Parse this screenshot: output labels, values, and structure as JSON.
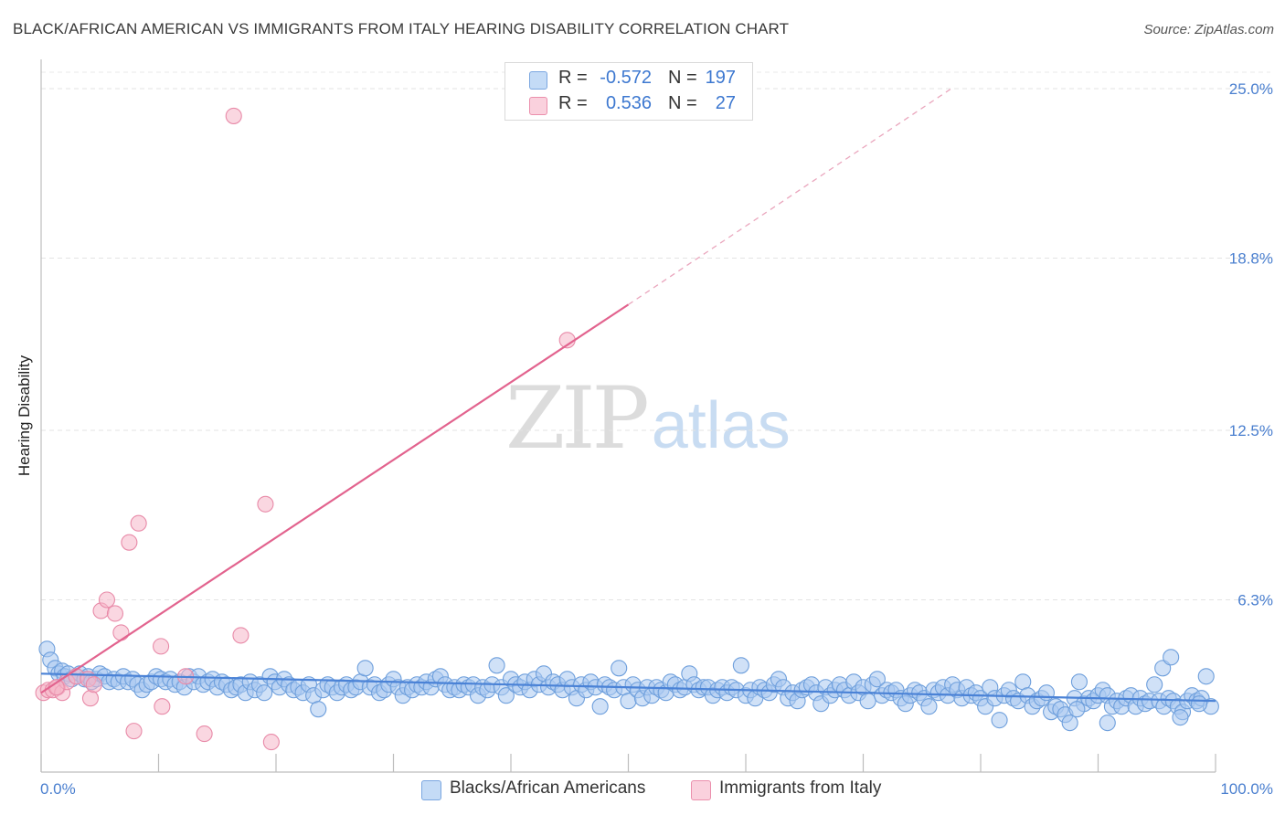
{
  "title": "BLACK/AFRICAN AMERICAN VS IMMIGRANTS FROM ITALY HEARING DISABILITY CORRELATION CHART",
  "source": "Source: ZipAtlas.com",
  "watermark": {
    "zip": "ZIP",
    "atlas": "atlas"
  },
  "legend_box": {
    "rows": [
      {
        "r_label": "R =",
        "r_value": "-0.572",
        "n_label": "N =",
        "n_value": "197",
        "color": "#a9c8f0"
      },
      {
        "r_label": "R =",
        "r_value": "0.536",
        "n_label": "N =",
        "n_value": "27",
        "color": "#f6b6c8"
      }
    ]
  },
  "chart_data": {
    "type": "scatter",
    "title": "BLACK/AFRICAN AMERICAN VS IMMIGRANTS FROM ITALY HEARING DISABILITY CORRELATION CHART",
    "xlabel": "",
    "ylabel": "Hearing Disability",
    "xlim": [
      0,
      100
    ],
    "ylim": [
      0,
      25.8
    ],
    "x_tick_labels": [
      "0.0%",
      "100.0%"
    ],
    "y_ticks": [
      6.3,
      12.5,
      18.8,
      25.0
    ],
    "y_tick_labels": [
      "6.3%",
      "12.5%",
      "18.8%",
      "25.0%"
    ],
    "grid": true,
    "legend_position": "bottom-center",
    "colors": {
      "blue": "#4a82d6",
      "blue_fill": "#a9c8f0",
      "pink": "#e2638e",
      "pink_fill": "#f6b6c8"
    },
    "series": [
      {
        "name": "Blacks/African Americans",
        "color": "#4a82d6",
        "trend": {
          "x": [
            0,
            100
          ],
          "y": [
            3.6,
            2.6
          ]
        },
        "points": [
          [
            0.5,
            4.5
          ],
          [
            0.8,
            4.1
          ],
          [
            1.2,
            3.8
          ],
          [
            1.5,
            3.6
          ],
          [
            1.8,
            3.7
          ],
          [
            2.0,
            3.5
          ],
          [
            2.3,
            3.6
          ],
          [
            2.6,
            3.4
          ],
          [
            3.0,
            3.5
          ],
          [
            3.3,
            3.6
          ],
          [
            3.7,
            3.4
          ],
          [
            4.0,
            3.5
          ],
          [
            4.3,
            3.3
          ],
          [
            4.7,
            3.4
          ],
          [
            5.0,
            3.6
          ],
          [
            5.4,
            3.5
          ],
          [
            5.8,
            3.3
          ],
          [
            6.2,
            3.4
          ],
          [
            6.6,
            3.3
          ],
          [
            7.0,
            3.5
          ],
          [
            7.4,
            3.3
          ],
          [
            7.8,
            3.4
          ],
          [
            8.2,
            3.2
          ],
          [
            8.6,
            3.0
          ],
          [
            9.0,
            3.2
          ],
          [
            9.4,
            3.3
          ],
          [
            9.8,
            3.5
          ],
          [
            10.2,
            3.4
          ],
          [
            10.6,
            3.3
          ],
          [
            11.0,
            3.4
          ],
          [
            11.4,
            3.2
          ],
          [
            11.8,
            3.3
          ],
          [
            12.2,
            3.1
          ],
          [
            12.6,
            3.5
          ],
          [
            13.0,
            3.3
          ],
          [
            13.4,
            3.5
          ],
          [
            13.8,
            3.2
          ],
          [
            14.2,
            3.3
          ],
          [
            14.6,
            3.4
          ],
          [
            15.0,
            3.1
          ],
          [
            15.4,
            3.3
          ],
          [
            15.8,
            3.2
          ],
          [
            16.2,
            3.0
          ],
          [
            16.6,
            3.1
          ],
          [
            17.0,
            3.2
          ],
          [
            17.4,
            2.9
          ],
          [
            17.8,
            3.3
          ],
          [
            18.2,
            3.0
          ],
          [
            18.6,
            3.2
          ],
          [
            19.0,
            2.9
          ],
          [
            19.5,
            3.5
          ],
          [
            19.9,
            3.3
          ],
          [
            20.3,
            3.1
          ],
          [
            20.7,
            3.4
          ],
          [
            21.1,
            3.2
          ],
          [
            21.5,
            3.0
          ],
          [
            21.9,
            3.1
          ],
          [
            22.3,
            2.9
          ],
          [
            22.8,
            3.2
          ],
          [
            23.2,
            2.8
          ],
          [
            23.6,
            2.3
          ],
          [
            24.0,
            3.0
          ],
          [
            24.4,
            3.2
          ],
          [
            24.8,
            3.1
          ],
          [
            25.2,
            2.9
          ],
          [
            25.6,
            3.1
          ],
          [
            26.0,
            3.2
          ],
          [
            26.4,
            3.0
          ],
          [
            26.8,
            3.1
          ],
          [
            27.2,
            3.3
          ],
          [
            27.6,
            3.8
          ],
          [
            28.0,
            3.1
          ],
          [
            28.4,
            3.2
          ],
          [
            28.8,
            2.9
          ],
          [
            29.2,
            3.0
          ],
          [
            29.6,
            3.2
          ],
          [
            30.0,
            3.4
          ],
          [
            30.4,
            3.1
          ],
          [
            30.8,
            2.8
          ],
          [
            31.2,
            3.1
          ],
          [
            31.6,
            3.0
          ],
          [
            32.0,
            3.2
          ],
          [
            32.4,
            3.1
          ],
          [
            32.8,
            3.3
          ],
          [
            33.2,
            3.1
          ],
          [
            33.6,
            3.4
          ],
          [
            34.0,
            3.5
          ],
          [
            34.4,
            3.2
          ],
          [
            34.8,
            3.0
          ],
          [
            35.2,
            3.1
          ],
          [
            35.6,
            3.0
          ],
          [
            36.0,
            3.2
          ],
          [
            36.4,
            3.1
          ],
          [
            36.8,
            3.2
          ],
          [
            37.2,
            2.8
          ],
          [
            37.6,
            3.1
          ],
          [
            38.0,
            3.0
          ],
          [
            38.4,
            3.2
          ],
          [
            38.8,
            3.9
          ],
          [
            39.2,
            3.1
          ],
          [
            39.6,
            2.8
          ],
          [
            40.0,
            3.4
          ],
          [
            40.4,
            3.2
          ],
          [
            40.8,
            3.1
          ],
          [
            41.2,
            3.3
          ],
          [
            41.6,
            3.0
          ],
          [
            42.0,
            3.4
          ],
          [
            42.4,
            3.2
          ],
          [
            42.8,
            3.6
          ],
          [
            43.2,
            3.1
          ],
          [
            43.6,
            3.3
          ],
          [
            44.0,
            3.2
          ],
          [
            44.4,
            3.0
          ],
          [
            44.8,
            3.4
          ],
          [
            45.2,
            3.1
          ],
          [
            45.6,
            2.7
          ],
          [
            46.0,
            3.2
          ],
          [
            46.4,
            3.0
          ],
          [
            46.8,
            3.3
          ],
          [
            47.2,
            3.1
          ],
          [
            47.6,
            2.4
          ],
          [
            48.0,
            3.2
          ],
          [
            48.4,
            3.1
          ],
          [
            48.8,
            3.0
          ],
          [
            49.2,
            3.8
          ],
          [
            49.6,
            3.1
          ],
          [
            50.0,
            2.6
          ],
          [
            50.4,
            3.2
          ],
          [
            50.8,
            3.0
          ],
          [
            51.2,
            2.7
          ],
          [
            51.6,
            3.1
          ],
          [
            52.0,
            2.8
          ],
          [
            52.4,
            3.1
          ],
          [
            52.8,
            3.0
          ],
          [
            53.2,
            2.9
          ],
          [
            53.6,
            3.3
          ],
          [
            54.0,
            3.2
          ],
          [
            54.4,
            3.0
          ],
          [
            54.8,
            3.1
          ],
          [
            55.2,
            3.6
          ],
          [
            55.6,
            3.2
          ],
          [
            56.0,
            3.0
          ],
          [
            56.4,
            3.1
          ],
          [
            56.8,
            3.1
          ],
          [
            57.2,
            2.8
          ],
          [
            57.6,
            3.0
          ],
          [
            58.0,
            3.1
          ],
          [
            58.4,
            2.9
          ],
          [
            58.8,
            3.1
          ],
          [
            59.2,
            3.0
          ],
          [
            59.6,
            3.9
          ],
          [
            60.0,
            2.8
          ],
          [
            60.4,
            3.0
          ],
          [
            60.8,
            2.7
          ],
          [
            61.2,
            3.1
          ],
          [
            61.6,
            3.0
          ],
          [
            62.0,
            2.9
          ],
          [
            62.4,
            3.2
          ],
          [
            62.8,
            3.4
          ],
          [
            63.2,
            3.1
          ],
          [
            63.6,
            2.7
          ],
          [
            64.0,
            2.9
          ],
          [
            64.4,
            2.6
          ],
          [
            64.8,
            3.0
          ],
          [
            65.2,
            3.1
          ],
          [
            65.6,
            3.2
          ],
          [
            66.0,
            2.9
          ],
          [
            66.4,
            2.5
          ],
          [
            66.8,
            3.1
          ],
          [
            67.2,
            2.8
          ],
          [
            67.6,
            3.0
          ],
          [
            68.0,
            3.2
          ],
          [
            68.4,
            3.0
          ],
          [
            68.8,
            2.8
          ],
          [
            69.2,
            3.3
          ],
          [
            69.6,
            2.9
          ],
          [
            70.0,
            3.1
          ],
          [
            70.4,
            2.6
          ],
          [
            70.8,
            3.2
          ],
          [
            71.2,
            3.4
          ],
          [
            71.6,
            2.8
          ],
          [
            72.0,
            3.0
          ],
          [
            72.4,
            2.9
          ],
          [
            72.8,
            3.0
          ],
          [
            73.2,
            2.7
          ],
          [
            73.6,
            2.5
          ],
          [
            74.0,
            2.8
          ],
          [
            74.4,
            3.0
          ],
          [
            74.8,
            2.9
          ],
          [
            75.2,
            2.7
          ],
          [
            75.6,
            2.4
          ],
          [
            76.0,
            3.0
          ],
          [
            76.4,
            2.9
          ],
          [
            76.8,
            3.1
          ],
          [
            77.2,
            2.8
          ],
          [
            77.6,
            3.2
          ],
          [
            78.0,
            3.0
          ],
          [
            78.4,
            2.7
          ],
          [
            78.8,
            3.1
          ],
          [
            79.2,
            2.8
          ],
          [
            79.6,
            2.9
          ],
          [
            80.0,
            2.7
          ],
          [
            80.4,
            2.4
          ],
          [
            80.8,
            3.1
          ],
          [
            81.2,
            2.7
          ],
          [
            81.6,
            1.9
          ],
          [
            82.0,
            2.8
          ],
          [
            82.4,
            3.0
          ],
          [
            82.8,
            2.7
          ],
          [
            83.2,
            2.6
          ],
          [
            83.6,
            3.3
          ],
          [
            84.0,
            2.8
          ],
          [
            84.4,
            2.4
          ],
          [
            84.8,
            2.6
          ],
          [
            85.2,
            2.7
          ],
          [
            85.6,
            2.9
          ],
          [
            86.0,
            2.2
          ],
          [
            86.4,
            2.4
          ],
          [
            86.8,
            2.3
          ],
          [
            87.2,
            2.1
          ],
          [
            87.6,
            1.8
          ],
          [
            88.0,
            2.7
          ],
          [
            88.4,
            3.3
          ],
          [
            88.8,
            2.5
          ],
          [
            89.2,
            2.7
          ],
          [
            89.6,
            2.6
          ],
          [
            90.0,
            2.8
          ],
          [
            90.4,
            3.0
          ],
          [
            90.8,
            2.8
          ],
          [
            91.2,
            2.4
          ],
          [
            91.6,
            2.6
          ],
          [
            92.0,
            2.4
          ],
          [
            92.4,
            2.7
          ],
          [
            92.8,
            2.8
          ],
          [
            93.2,
            2.4
          ],
          [
            93.6,
            2.7
          ],
          [
            94.0,
            2.5
          ],
          [
            94.4,
            2.6
          ],
          [
            94.8,
            3.2
          ],
          [
            95.2,
            2.6
          ],
          [
            95.6,
            2.4
          ],
          [
            96.0,
            2.7
          ],
          [
            96.4,
            2.6
          ],
          [
            96.8,
            2.4
          ],
          [
            97.2,
            2.2
          ],
          [
            97.6,
            2.6
          ],
          [
            98.0,
            2.8
          ],
          [
            98.4,
            2.6
          ],
          [
            98.8,
            2.7
          ],
          [
            99.2,
            3.5
          ],
          [
            99.6,
            2.4
          ],
          [
            95.5,
            3.8
          ],
          [
            96.2,
            4.2
          ],
          [
            97.0,
            2.0
          ],
          [
            98.6,
            2.5
          ],
          [
            88.2,
            2.3
          ],
          [
            90.8,
            1.8
          ]
        ]
      },
      {
        "name": "Immigrants from Italy",
        "color": "#e2638e",
        "trend": {
          "x": [
            0,
            50
          ],
          "y": [
            2.9,
            17.1
          ]
        },
        "trend_dashed": {
          "x": [
            50,
            77.5
          ],
          "y": [
            17.1,
            25.0
          ]
        },
        "points": [
          [
            0.2,
            2.9
          ],
          [
            0.6,
            3.0
          ],
          [
            1.0,
            3.0
          ],
          [
            1.4,
            3.1
          ],
          [
            1.8,
            2.9
          ],
          [
            2.2,
            3.3
          ],
          [
            3.0,
            3.5
          ],
          [
            4.0,
            3.4
          ],
          [
            4.2,
            2.7
          ],
          [
            4.5,
            3.2
          ],
          [
            5.1,
            5.9
          ],
          [
            5.6,
            6.3
          ],
          [
            6.3,
            5.8
          ],
          [
            6.8,
            5.1
          ],
          [
            7.5,
            8.4
          ],
          [
            7.9,
            1.5
          ],
          [
            8.3,
            9.1
          ],
          [
            10.2,
            4.6
          ],
          [
            10.3,
            2.4
          ],
          [
            12.3,
            3.5
          ],
          [
            13.9,
            1.4
          ],
          [
            16.4,
            24.0
          ],
          [
            17.0,
            5.0
          ],
          [
            19.1,
            9.8
          ],
          [
            19.6,
            1.1
          ],
          [
            44.8,
            15.8
          ],
          [
            1.3,
            3.1
          ]
        ]
      }
    ]
  },
  "bottom_legend": [
    {
      "label": "Blacks/African Americans",
      "color": "#a9c8f0"
    },
    {
      "label": "Immigrants from Italy",
      "color": "#f6b6c8"
    }
  ]
}
